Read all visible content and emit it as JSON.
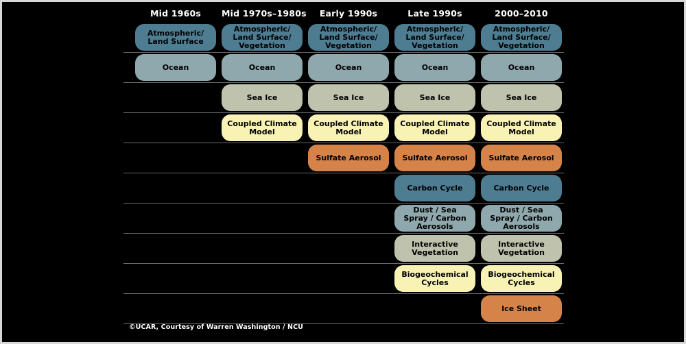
{
  "palette": {
    "teal": "#4e7d92",
    "slate_blue": "#8fa8ad",
    "sage": "#bfc2ac",
    "cream": "#f9f2b5",
    "orange": "#d6834a",
    "separator_line": "#6b6b6b",
    "background": "#000000",
    "frame": "#d8d8d8",
    "header_text": "#ffffff",
    "box_text": "#000000"
  },
  "columns": [
    "Mid 1960s",
    "Mid 1970s–1980s",
    "Early 1990s",
    "Late 1990s",
    "2000–2010"
  ],
  "rows": [
    {
      "id": "atmosphere",
      "cells": [
        "Atmospheric/\nLand Surface",
        "Atmospheric/\nLand Surface/\nVegetation",
        "Atmospheric/\nLand Surface/\nVegetation",
        "Atmospheric/\nLand Surface/\nVegetation",
        "Atmospheric/\nLand Surface/\nVegetation"
      ]
    },
    {
      "id": "ocean",
      "cells": [
        "Ocean",
        "Ocean",
        "Ocean",
        "Ocean",
        "Ocean"
      ]
    },
    {
      "id": "sea-ice",
      "cells": [
        null,
        "Sea Ice",
        "Sea Ice",
        "Sea Ice",
        "Sea Ice"
      ]
    },
    {
      "id": "coupled-climate-model",
      "cells": [
        null,
        "Coupled Climate\nModel",
        "Coupled Climate\nModel",
        "Coupled Climate\nModel",
        "Coupled Climate\nModel"
      ]
    },
    {
      "id": "sulfate-aerosol",
      "cells": [
        null,
        null,
        "Sulfate Aerosol",
        "Sulfate Aerosol",
        "Sulfate Aerosol"
      ]
    },
    {
      "id": "carbon-cycle",
      "cells": [
        null,
        null,
        null,
        "Carbon Cycle",
        "Carbon Cycle"
      ]
    },
    {
      "id": "dust-sea-spray-carbon-aerosols",
      "cells": [
        null,
        null,
        null,
        "Dust / Sea\nSpray / Carbon\nAerosols",
        "Dust / Sea\nSpray / Carbon\nAerosols"
      ]
    },
    {
      "id": "interactive-vegetation",
      "cells": [
        null,
        null,
        null,
        "Interactive\nVegetation",
        "Interactive\nVegetation"
      ]
    },
    {
      "id": "biogeochemical-cycles",
      "cells": [
        null,
        null,
        null,
        "Biogeochemical\nCycles",
        "Biogeochemical\nCycles"
      ]
    },
    {
      "id": "ice-sheet",
      "cells": [
        null,
        null,
        null,
        null,
        "Ice Sheet"
      ]
    }
  ],
  "footer": "©UCAR, Courtesy of Warren Washington / NCU"
}
